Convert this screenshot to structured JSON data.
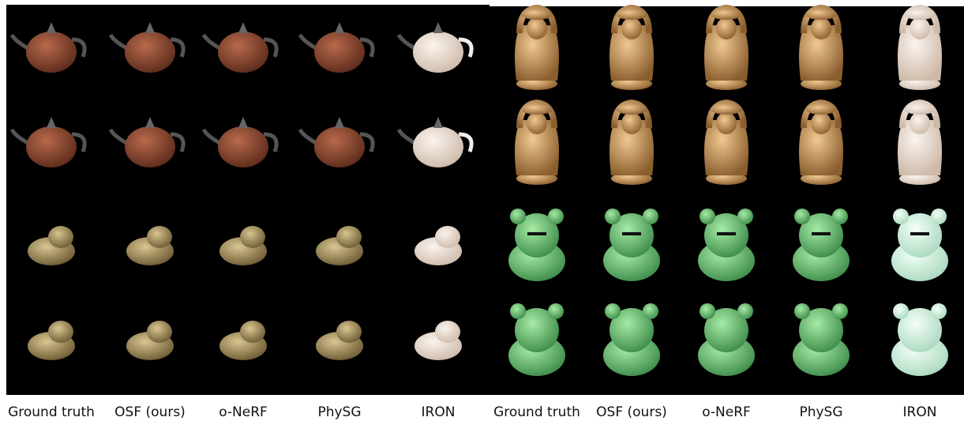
{
  "labels": [
    "Ground truth",
    "OSF (ours)",
    "o-NeRF",
    "PhySG",
    "IRON",
    "Ground truth",
    "OSF (ours)",
    "o-NeRF",
    "PhySG",
    "IRON"
  ]
}
